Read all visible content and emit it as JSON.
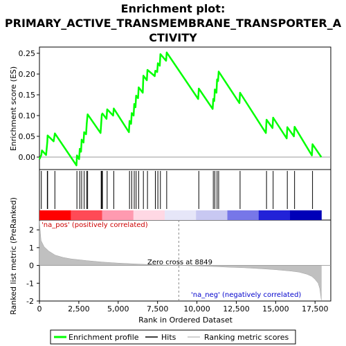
{
  "title_lines": [
    "Enrichment plot:",
    "PRIMARY_ACTIVE_TRANSMEMBRANE_TRANSPORTER_A",
    "CTIVITY"
  ],
  "chart_data": {
    "type": "line",
    "es_panel": {
      "ylabel": "Enrichment score (ES)",
      "ylim": [
        -0.03,
        0.265
      ],
      "yticks": [
        0.0,
        0.05,
        0.1,
        0.15,
        0.2,
        0.25
      ],
      "ytick_labels": [
        "0.00",
        "0.05",
        "0.10",
        "0.15",
        "0.20",
        "0.25"
      ],
      "series": [
        {
          "name": "Enrichment profile",
          "color": "#00ff00",
          "x": [
            0,
            120,
            160,
            420,
            500,
            520,
            900,
            980,
            2350,
            2380,
            2520,
            2560,
            2640,
            2680,
            2800,
            2840,
            2960,
            3000,
            3060,
            3880,
            3920,
            3960,
            4000,
            4260,
            4300,
            4680,
            4720,
            5680,
            5720,
            5820,
            5860,
            5980,
            6020,
            6100,
            6140,
            6260,
            6300,
            6560,
            6600,
            6820,
            6860,
            7320,
            7360,
            7480,
            7520,
            7640,
            7680,
            8040,
            8080,
            10080,
            10120,
            11000,
            11040,
            11100,
            11140,
            11240,
            11280,
            11340,
            11380,
            12700,
            12740,
            14380,
            14420,
            14800,
            14840,
            15700,
            15740,
            16160,
            16200,
            17300,
            17340,
            17900
          ],
          "y": [
            -0.005,
            0.005,
            0.016,
            0.005,
            0.037,
            0.052,
            0.038,
            0.057,
            -0.02,
            0.004,
            -0.005,
            0.02,
            0.013,
            0.042,
            0.035,
            0.06,
            0.055,
            0.08,
            0.103,
            0.058,
            0.08,
            0.102,
            0.105,
            0.092,
            0.115,
            0.1,
            0.117,
            0.06,
            0.087,
            0.08,
            0.106,
            0.1,
            0.128,
            0.12,
            0.148,
            0.142,
            0.168,
            0.155,
            0.196,
            0.185,
            0.21,
            0.195,
            0.208,
            0.205,
            0.226,
            0.22,
            0.248,
            0.232,
            0.252,
            0.14,
            0.165,
            0.116,
            0.14,
            0.135,
            0.163,
            0.155,
            0.187,
            0.183,
            0.206,
            0.13,
            0.155,
            0.058,
            0.09,
            0.07,
            0.095,
            0.045,
            0.072,
            0.05,
            0.073,
            0.004,
            0.031,
            0.0
          ]
        }
      ]
    },
    "hits_panel": {
      "hit_positions": [
        120,
        500,
        520,
        980,
        2380,
        2560,
        2680,
        2840,
        3000,
        3060,
        3920,
        3960,
        4000,
        4300,
        4720,
        5720,
        5860,
        6020,
        6140,
        6300,
        6600,
        6860,
        7360,
        7520,
        7680,
        8080,
        10120,
        11040,
        11140,
        11280,
        11380,
        12740,
        14420,
        14840,
        15740,
        16200,
        17340
      ],
      "gradient_colors": [
        "#ff0000",
        "#ff4a56",
        "#ff9ab0",
        "#ffd8e4",
        "#e6e6f8",
        "#c8c8f2",
        "#7777e8",
        "#2222d8",
        "#0000b8"
      ]
    },
    "metric_panel": {
      "ylabel": "Ranked list metric (PreRanked)",
      "xlabel": "Rank in Ordered Dataset",
      "ylim": [
        -2.0,
        2.55
      ],
      "yticks": [
        -2,
        -1,
        0,
        1,
        2
      ],
      "ytick_labels": [
        "-2",
        "-1",
        "0",
        "1",
        "2"
      ],
      "fill_color": "#c0c0c0",
      "x": [
        0,
        100,
        300,
        600,
        1000,
        1500,
        2000,
        3000,
        4000,
        5000,
        6000,
        7000,
        8000,
        8849,
        10000,
        11000,
        12000,
        13000,
        14000,
        15000,
        16000,
        16500,
        17000,
        17300,
        17500,
        17700,
        17800,
        17900
      ],
      "y": [
        2.5,
        1.4,
        1.05,
        0.8,
        0.58,
        0.45,
        0.37,
        0.27,
        0.19,
        0.13,
        0.09,
        0.05,
        0.02,
        0.0,
        -0.03,
        -0.06,
        -0.1,
        -0.13,
        -0.18,
        -0.24,
        -0.32,
        -0.38,
        -0.5,
        -0.62,
        -0.78,
        -1.0,
        -1.3,
        -1.95
      ],
      "zero_cross_label": "Zero cross at 8849",
      "zero_cross_x": 8849,
      "na_pos_label": "'na_pos' (positively correlated)",
      "na_neg_label": "'na_neg' (negatively correlated)",
      "na_pos_color": "#cc0000",
      "na_neg_color": "#0000cc"
    },
    "xlim": [
      0,
      18500
    ],
    "xticks": [
      0,
      2500,
      5000,
      7500,
      10000,
      12500,
      15000,
      17500
    ],
    "xtick_labels": [
      "0",
      "2,500",
      "5,000",
      "7,500",
      "10,000",
      "12,500",
      "15,000",
      "17,500"
    ],
    "legend": {
      "placement": "bottom",
      "entries": [
        {
          "label": "Enrichment profile",
          "color": "#00ff00",
          "kind": "line"
        },
        {
          "label": "Hits",
          "color": "#000000",
          "kind": "line"
        },
        {
          "label": "Ranking metric scores",
          "color": "#c0c0c0",
          "kind": "line"
        }
      ]
    }
  }
}
